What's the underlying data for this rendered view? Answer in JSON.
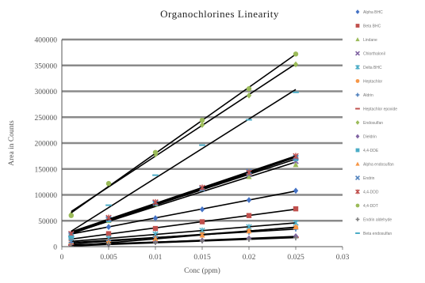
{
  "chart_data": {
    "type": "scatter",
    "title": "Organochlorines Linearity",
    "xlabel": "Conc (ppm)",
    "ylabel": "Area in Counts",
    "xlim": [
      0,
      0.03
    ],
    "ylim": [
      0,
      400000
    ],
    "x_ticks": [
      "0",
      "0.005",
      "0.01",
      "0.015",
      "0.02",
      "0.025",
      "0.03"
    ],
    "y_ticks": [
      "0",
      "50000",
      "100000",
      "150000",
      "200000",
      "250000",
      "300000",
      "350000",
      "400000"
    ],
    "grid": "horizontal",
    "legend_position": "right",
    "trendlines": true,
    "series": [
      {
        "name": "Alpha BHC",
        "color": "#4472C4",
        "marker": "diamond",
        "x": [
          0.001,
          0.005,
          0.01,
          0.015,
          0.02,
          0.025
        ],
        "y": [
          25000,
          38000,
          55000,
          72000,
          90000,
          108000
        ]
      },
      {
        "name": "Beta BHC",
        "color": "#C0504D",
        "marker": "square",
        "x": [
          0.001,
          0.005,
          0.01,
          0.015,
          0.02,
          0.025
        ],
        "y": [
          15000,
          25000,
          35000,
          48000,
          60000,
          73000
        ]
      },
      {
        "name": "Lindane",
        "color": "#9BBB59",
        "marker": "triangle",
        "x": [
          0.001,
          0.005,
          0.01,
          0.015,
          0.02,
          0.025
        ],
        "y": [
          20000,
          50000,
          82000,
          112000,
          135000,
          158000
        ]
      },
      {
        "name": "Chlorthalonil",
        "color": "#8064A2",
        "marker": "x",
        "x": [
          0.001,
          0.005,
          0.01,
          0.015,
          0.02,
          0.025
        ],
        "y": [
          22000,
          52000,
          85000,
          113000,
          140000,
          165000
        ]
      },
      {
        "name": "Delta BHC",
        "color": "#4BACC6",
        "marker": "star",
        "x": [
          0.001,
          0.005,
          0.01,
          0.015,
          0.02,
          0.025
        ],
        "y": [
          10000,
          16000,
          24000,
          31000,
          38000,
          46000
        ]
      },
      {
        "name": "Heptachlor",
        "color": "#F79646",
        "marker": "circle",
        "x": [
          0.001,
          0.005,
          0.01,
          0.015,
          0.02,
          0.025
        ],
        "y": [
          5000,
          11000,
          17000,
          24000,
          30000,
          37000
        ]
      },
      {
        "name": "Aldrin",
        "color": "#4F81BD",
        "marker": "plus",
        "x": [
          0.001,
          0.005,
          0.01,
          0.015,
          0.02,
          0.025
        ],
        "y": [
          8000,
          12000,
          18000,
          23000,
          28000,
          34000
        ]
      },
      {
        "name": "Heptachlor epoxide",
        "color": "#C0504D",
        "marker": "dash",
        "x": [
          0.001,
          0.005,
          0.01,
          0.015,
          0.02,
          0.025
        ],
        "y": [
          3000,
          6000,
          9000,
          12000,
          15000,
          18000
        ]
      },
      {
        "name": "Endosulfan",
        "color": "#9BBB59",
        "marker": "diamond",
        "x": [
          0.001,
          0.005,
          0.01,
          0.015,
          0.02,
          0.025
        ],
        "y": [
          62000,
          120000,
          178000,
          235000,
          292000,
          352000
        ]
      },
      {
        "name": "Dieldrin",
        "color": "#8064A2",
        "marker": "diamond",
        "x": [
          0.001,
          0.005,
          0.01,
          0.015,
          0.02,
          0.025
        ],
        "y": [
          2000,
          5000,
          9000,
          12000,
          16000,
          20000
        ]
      },
      {
        "name": "4,4-DDE",
        "color": "#4BACC6",
        "marker": "square",
        "x": [
          0.001,
          0.005,
          0.01,
          0.015,
          0.02,
          0.025
        ],
        "y": [
          20000,
          52000,
          84000,
          112000,
          142000,
          170000
        ]
      },
      {
        "name": "Alpha endosulfan",
        "color": "#F79646",
        "marker": "triangle",
        "x": [
          0.001,
          0.005,
          0.01,
          0.015,
          0.02,
          0.025
        ],
        "y": [
          1000,
          8000,
          15000,
          22000,
          30000,
          38000
        ]
      },
      {
        "name": "Endrin",
        "color": "#4F81BD",
        "marker": "x",
        "x": [
          0.001,
          0.005,
          0.01,
          0.015,
          0.02,
          0.025
        ],
        "y": [
          24000,
          54000,
          84000,
          112000,
          145000,
          172000
        ]
      },
      {
        "name": "4,4-DDD",
        "color": "#C0504D",
        "marker": "star",
        "x": [
          0.001,
          0.005,
          0.01,
          0.015,
          0.02,
          0.025
        ],
        "y": [
          25000,
          56000,
          86000,
          114000,
          143000,
          175000
        ]
      },
      {
        "name": "4,4-DDT",
        "color": "#9BBB59",
        "marker": "circle",
        "x": [
          0.001,
          0.005,
          0.01,
          0.015,
          0.02,
          0.025
        ],
        "y": [
          60000,
          122000,
          182000,
          244000,
          305000,
          372000
        ]
      },
      {
        "name": "Endrin aldehyde",
        "color": "#7F7F7F",
        "marker": "plus",
        "x": [
          0.001,
          0.005,
          0.01,
          0.015,
          0.02,
          0.025
        ],
        "y": [
          0,
          5000,
          8000,
          11000,
          14000,
          17000
        ]
      },
      {
        "name": "Beta endosulfan",
        "color": "#4BACC6",
        "marker": "dash",
        "x": [
          0.001,
          0.005,
          0.01,
          0.015,
          0.02,
          0.025
        ],
        "y": [
          20000,
          80000,
          138000,
          196000,
          245000,
          298000
        ]
      }
    ]
  }
}
